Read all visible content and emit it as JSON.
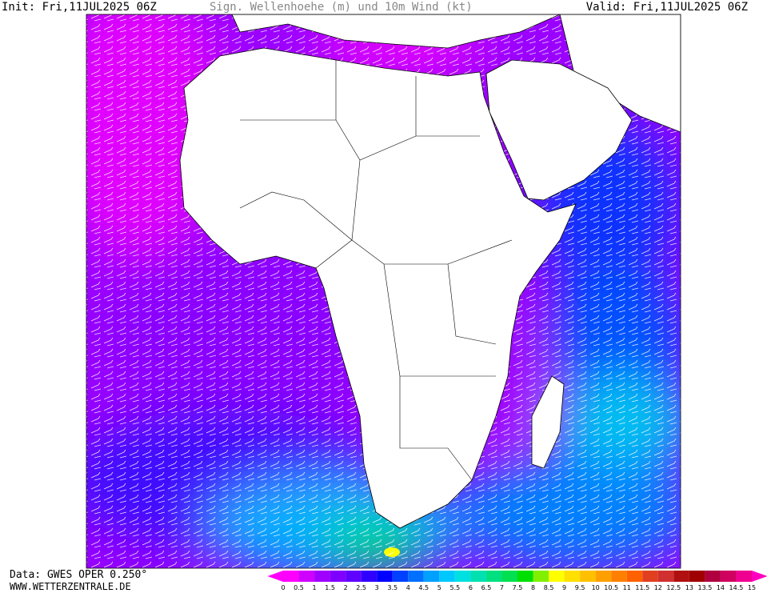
{
  "header": {
    "init": "Init: Fri,11JUL2025 06Z",
    "title": "Sign. Wellenhoehe (m) und 10m Wind (kt)",
    "valid": "Valid: Fri,11JUL2025 06Z"
  },
  "footer": {
    "source": "Data: GWES OPER 0.250°",
    "website": "WWW.WETTERZENTRALE.DE"
  },
  "colorbar": {
    "labels": [
      0,
      0.5,
      1,
      1.5,
      2,
      2.5,
      3,
      3.5,
      4,
      4.5,
      5,
      5.5,
      6,
      6.5,
      7,
      7.5,
      8,
      8.5,
      9,
      9.5,
      10,
      10.5,
      11,
      11.5,
      12,
      12.5,
      13,
      13.5,
      14,
      14.5,
      15
    ],
    "colors": [
      "#ff00ff",
      "#ff00ff",
      "#d000ff",
      "#a000ff",
      "#8000ff",
      "#6000ff",
      "#3000ff",
      "#0000ff",
      "#0040ff",
      "#0070ff",
      "#00a0ff",
      "#00c8ff",
      "#00e0e0",
      "#00e0b0",
      "#00e080",
      "#00e050",
      "#00e000",
      "#80f000",
      "#ffff00",
      "#ffe000",
      "#ffc000",
      "#ffa000",
      "#ff8000",
      "#ff6000",
      "#e04020",
      "#d03030",
      "#b01010",
      "#a00000",
      "#b00040",
      "#d00060",
      "#f00090",
      "#ff00c0"
    ]
  }
}
